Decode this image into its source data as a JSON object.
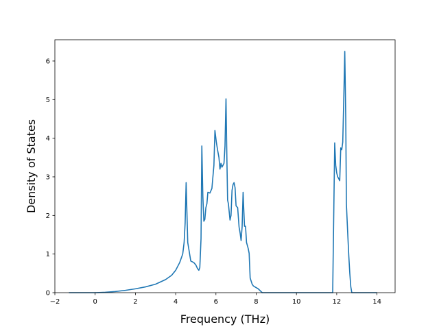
{
  "chart_data": {
    "type": "line",
    "xlabel": "Frequency (THz)",
    "ylabel": "Density of States",
    "xlim": [
      -2.0,
      14.9
    ],
    "ylim": [
      0,
      6.55
    ],
    "xticks": [
      -2,
      0,
      2,
      4,
      6,
      8,
      10,
      12,
      14
    ],
    "yticks": [
      0,
      1,
      2,
      3,
      4,
      5,
      6
    ],
    "grid": false,
    "line_color": "#1f77b4",
    "series": [
      {
        "name": "",
        "x": [
          -1.3,
          0,
          0.5,
          1,
          1.5,
          2,
          2.5,
          3,
          3.5,
          3.8,
          4.0,
          4.2,
          4.35,
          4.42,
          4.47,
          4.52,
          4.6,
          4.75,
          4.9,
          5.0,
          5.08,
          5.15,
          5.2,
          5.26,
          5.3,
          5.35,
          5.4,
          5.45,
          5.5,
          5.55,
          5.6,
          5.7,
          5.8,
          5.9,
          5.95,
          6.02,
          6.08,
          6.15,
          6.2,
          6.25,
          6.3,
          6.35,
          6.4,
          6.45,
          6.5,
          6.55,
          6.58,
          6.62,
          6.7,
          6.75,
          6.8,
          6.85,
          6.9,
          6.95,
          7.0,
          7.08,
          7.15,
          7.2,
          7.25,
          7.3,
          7.35,
          7.38,
          7.42,
          7.47,
          7.52,
          7.6,
          7.65,
          7.7,
          7.8,
          7.85,
          7.9,
          8.1,
          8.3,
          8.5,
          11.8,
          11.9,
          11.95,
          12.0,
          12.05,
          12.1,
          12.15,
          12.2,
          12.25,
          12.3,
          12.35,
          12.4,
          12.45,
          12.48,
          12.55,
          12.6,
          12.65,
          12.7,
          12.75,
          12.8,
          12.85,
          14.0
        ],
        "y": [
          0,
          0,
          0.01,
          0.03,
          0.06,
          0.1,
          0.15,
          0.22,
          0.34,
          0.45,
          0.58,
          0.78,
          1.0,
          1.3,
          1.8,
          2.85,
          1.3,
          0.82,
          0.78,
          0.72,
          0.63,
          0.58,
          0.65,
          1.4,
          3.8,
          2.5,
          1.85,
          1.9,
          2.2,
          2.3,
          2.6,
          2.58,
          2.7,
          3.3,
          4.2,
          3.9,
          3.7,
          3.5,
          3.2,
          3.35,
          3.25,
          3.3,
          3.35,
          3.8,
          5.02,
          3.3,
          2.4,
          2.3,
          1.88,
          2.0,
          2.65,
          2.8,
          2.85,
          2.72,
          2.25,
          2.2,
          1.7,
          1.55,
          1.35,
          1.7,
          2.6,
          2.2,
          1.72,
          1.72,
          1.3,
          1.15,
          1.02,
          0.38,
          0.22,
          0.18,
          0.16,
          0.1,
          0,
          0,
          0,
          3.88,
          3.3,
          3.1,
          3.0,
          2.95,
          2.9,
          3.75,
          3.7,
          3.9,
          5.0,
          6.25,
          4.5,
          2.3,
          1.5,
          0.95,
          0.5,
          0.15,
          0,
          0,
          0,
          0
        ]
      }
    ]
  }
}
